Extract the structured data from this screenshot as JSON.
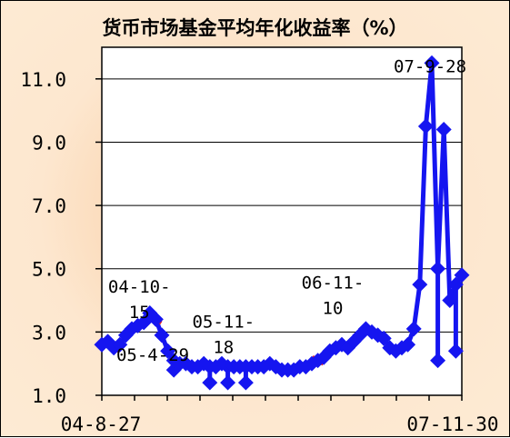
{
  "chart_data": {
    "type": "line",
    "title": "货币市场基金平均年化收益率（%）",
    "xlabel": "",
    "ylabel": "",
    "ylim": [
      1.0,
      12.0
    ],
    "yticks": [
      "1.0",
      "3.0",
      "5.0",
      "7.0",
      "9.0",
      "11.0"
    ],
    "ytick_values": [
      1.0,
      3.0,
      5.0,
      7.0,
      9.0,
      11.0
    ],
    "x_start_label": "04-8-27",
    "x_end_label": "07-11-30",
    "grid": true,
    "series_color": "#1515f0",
    "highlight_color": "#e82020",
    "annotations": [
      {
        "text": "04-10-",
        "text2": "15",
        "index": 7
      },
      {
        "text": "05-4-29",
        "text2": "",
        "index": 10
      },
      {
        "text": "05-11-",
        "text2": "18",
        "index": 23
      },
      {
        "text": "06-11-",
        "text2": "10",
        "index": 40
      },
      {
        "text": "07-9-28",
        "text2": "",
        "index": 60
      }
    ],
    "values": [
      2.6,
      2.7,
      2.5,
      2.6,
      2.9,
      3.1,
      3.2,
      3.3,
      3.6,
      3.4,
      2.9,
      2.4,
      2.1,
      2.0,
      2.0,
      1.9,
      1.9,
      2.0,
      1.9,
      1.9,
      2.0,
      1.9,
      1.9,
      1.9,
      1.9,
      1.9,
      1.9,
      1.9,
      2.0,
      1.9,
      1.8,
      1.8,
      1.8,
      1.9,
      1.9,
      2.0,
      2.1,
      2.2,
      2.4,
      2.5,
      2.6,
      2.5,
      2.7,
      2.9,
      3.1,
      3.0,
      2.9,
      2.8,
      2.5,
      2.4,
      2.5,
      2.6,
      3.1,
      4.5,
      9.5,
      11.5,
      5.0,
      9.4,
      4.0,
      4.5,
      4.8
    ],
    "dip_values": [
      {
        "index": 18,
        "value": 1.4
      },
      {
        "index": 21,
        "value": 1.4
      },
      {
        "index": 24,
        "value": 1.4
      },
      {
        "index": 12,
        "value": 1.8
      },
      {
        "index": 56,
        "value": 2.1
      },
      {
        "index": 59,
        "value": 2.4
      }
    ],
    "highlight_indices": [
      2,
      9,
      15,
      24,
      30,
      36
    ]
  }
}
